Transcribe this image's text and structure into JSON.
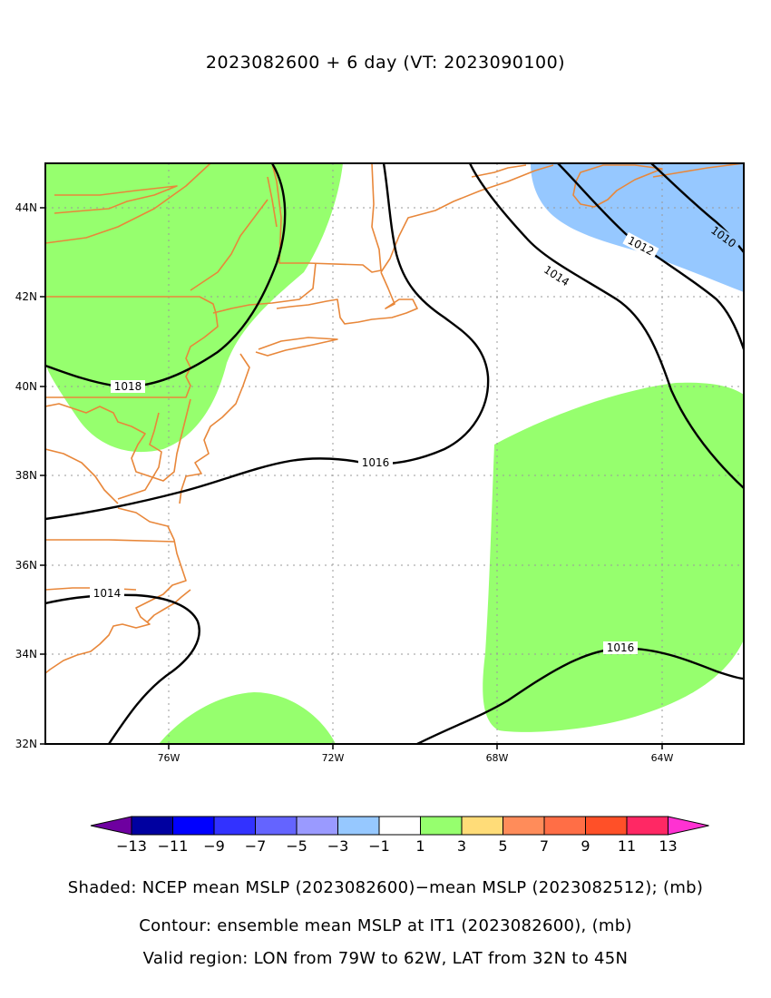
{
  "title": "2023082600 + 6 day (VT: 2023090100)",
  "axes": {
    "lat_labels": [
      "32N",
      "34N",
      "36N",
      "38N",
      "40N",
      "42N",
      "44N"
    ],
    "lon_labels": [
      "76W",
      "72W",
      "68W",
      "64W"
    ],
    "lon_range": [
      -79,
      -62
    ],
    "lat_range": [
      32,
      45
    ],
    "grid": true
  },
  "contours": {
    "labels": [
      "1018",
      "1016",
      "1014",
      "1014",
      "1016",
      "1012",
      "1010"
    ]
  },
  "colorbar": {
    "tick_labels": [
      "-13",
      "-11",
      "-9",
      "-7",
      "-5",
      "-3",
      "-1",
      "1",
      "3",
      "5",
      "7",
      "9",
      "11",
      "13"
    ],
    "colors": [
      "#0000a0",
      "#0000ff",
      "#3232ff",
      "#6464ff",
      "#9a9aff",
      "#96c8ff",
      "#ffffff",
      "#96ff6e",
      "#ffdc78",
      "#ff8c5a",
      "#ff6e46",
      "#ff5028",
      "#ff2864"
    ],
    "under_color": "#6e00a0",
    "over_color": "#ff32d2"
  },
  "captions": {
    "shaded": "Shaded: NCEP mean MSLP (2023082600)−mean MSLP (2023082512); (mb)",
    "contour": "Contour: ensemble mean MSLP at IT1 (2023082600), (mb)",
    "region": "Valid region: LON from 79W to 62W, LAT from 32N to 45N"
  }
}
